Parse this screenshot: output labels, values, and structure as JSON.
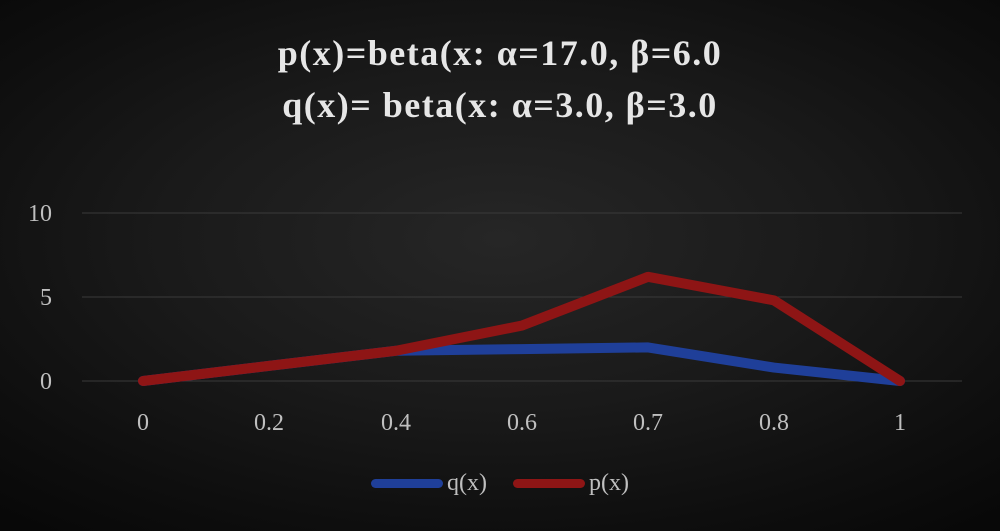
{
  "chart_data": {
    "type": "line",
    "title_lines": [
      "p(x)=beta(x: α=17.0, β=6.0",
      "q(x)= beta(x: α=3.0, β=3.0"
    ],
    "xlabel": "",
    "ylabel": "",
    "categories": [
      "0",
      "0.2",
      "0.4",
      "0.6",
      "0.7",
      "0.8",
      "1"
    ],
    "y_ticks": [
      "0",
      "5",
      "10"
    ],
    "ylim": [
      0,
      10
    ],
    "grid": true,
    "legend_position": "bottom",
    "series": [
      {
        "name": "q(x)",
        "color": "#1f3f99",
        "values": [
          0,
          0.9,
          1.8,
          1.9,
          2.0,
          0.8,
          0
        ]
      },
      {
        "name": "p(x)",
        "color": "#8e1515",
        "values": [
          0,
          0.9,
          1.8,
          3.3,
          6.2,
          4.8,
          0
        ]
      }
    ]
  }
}
